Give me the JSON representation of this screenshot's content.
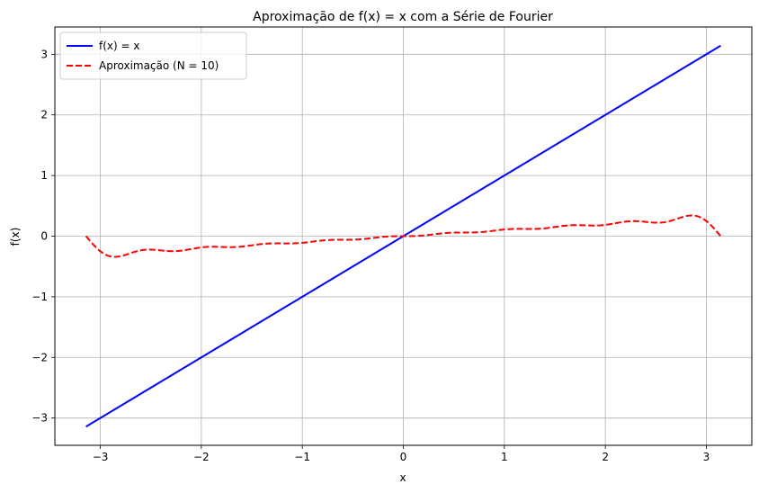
{
  "chart_data": {
    "type": "line",
    "title": "Aproximação de f(x) = x com a Série de Fourier",
    "xlabel": "x",
    "ylabel": "f(x)",
    "xlim": [
      -3.45,
      3.45
    ],
    "ylim": [
      -3.45,
      3.45
    ],
    "x_ticks": [
      -3,
      -2,
      -1,
      0,
      1,
      2,
      3
    ],
    "y_ticks": [
      -3,
      -2,
      -1,
      0,
      1,
      2,
      3
    ],
    "x_tick_labels": [
      "−3",
      "−2",
      "−1",
      "0",
      "1",
      "2",
      "3"
    ],
    "y_tick_labels": [
      "−3",
      "−2",
      "−1",
      "0",
      "1",
      "2",
      "3"
    ],
    "grid": true,
    "legend_position": "top-left",
    "x_domain": [
      -3.14159,
      3.14159
    ],
    "series": [
      {
        "name": "f(x) = x",
        "function": "identity",
        "color": "#0000ff",
        "style": "solid"
      },
      {
        "name": "Aproximação (N = 10)",
        "function": "fourier_sawtooth",
        "terms": 10,
        "color": "#ff0000",
        "style": "dashed"
      }
    ]
  }
}
